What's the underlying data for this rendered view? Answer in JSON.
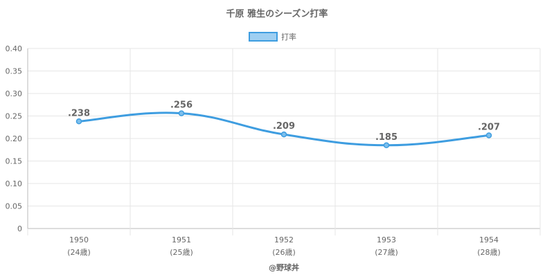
{
  "chart_data": {
    "type": "line",
    "title": "千原 雅生のシーズン打率",
    "legend": {
      "label": "打率",
      "position": "top"
    },
    "categories": [
      "1950",
      "1951",
      "1952",
      "1953",
      "1954"
    ],
    "sub_labels": [
      "(24歳)",
      "(25歳)",
      "(26歳)",
      "(27歳)",
      "(28歳)"
    ],
    "series": [
      {
        "name": "打率",
        "values": [
          0.238,
          0.256,
          0.209,
          0.185,
          0.207
        ]
      }
    ],
    "data_labels": [
      ".238",
      ".256",
      ".209",
      ".185",
      ".207"
    ],
    "yticks": [
      "0",
      "0.05",
      "0.10",
      "0.15",
      "0.20",
      "0.25",
      "0.30",
      "0.35",
      "0.40"
    ],
    "ylim": [
      0,
      0.4
    ],
    "grid": true,
    "colors": {
      "line": "#3e9de0",
      "point": "#7dbfec",
      "legend_fill": "#9ecff2",
      "grid": "#e6e6e6",
      "text": "#666666"
    }
  },
  "credit": "@野球丼"
}
